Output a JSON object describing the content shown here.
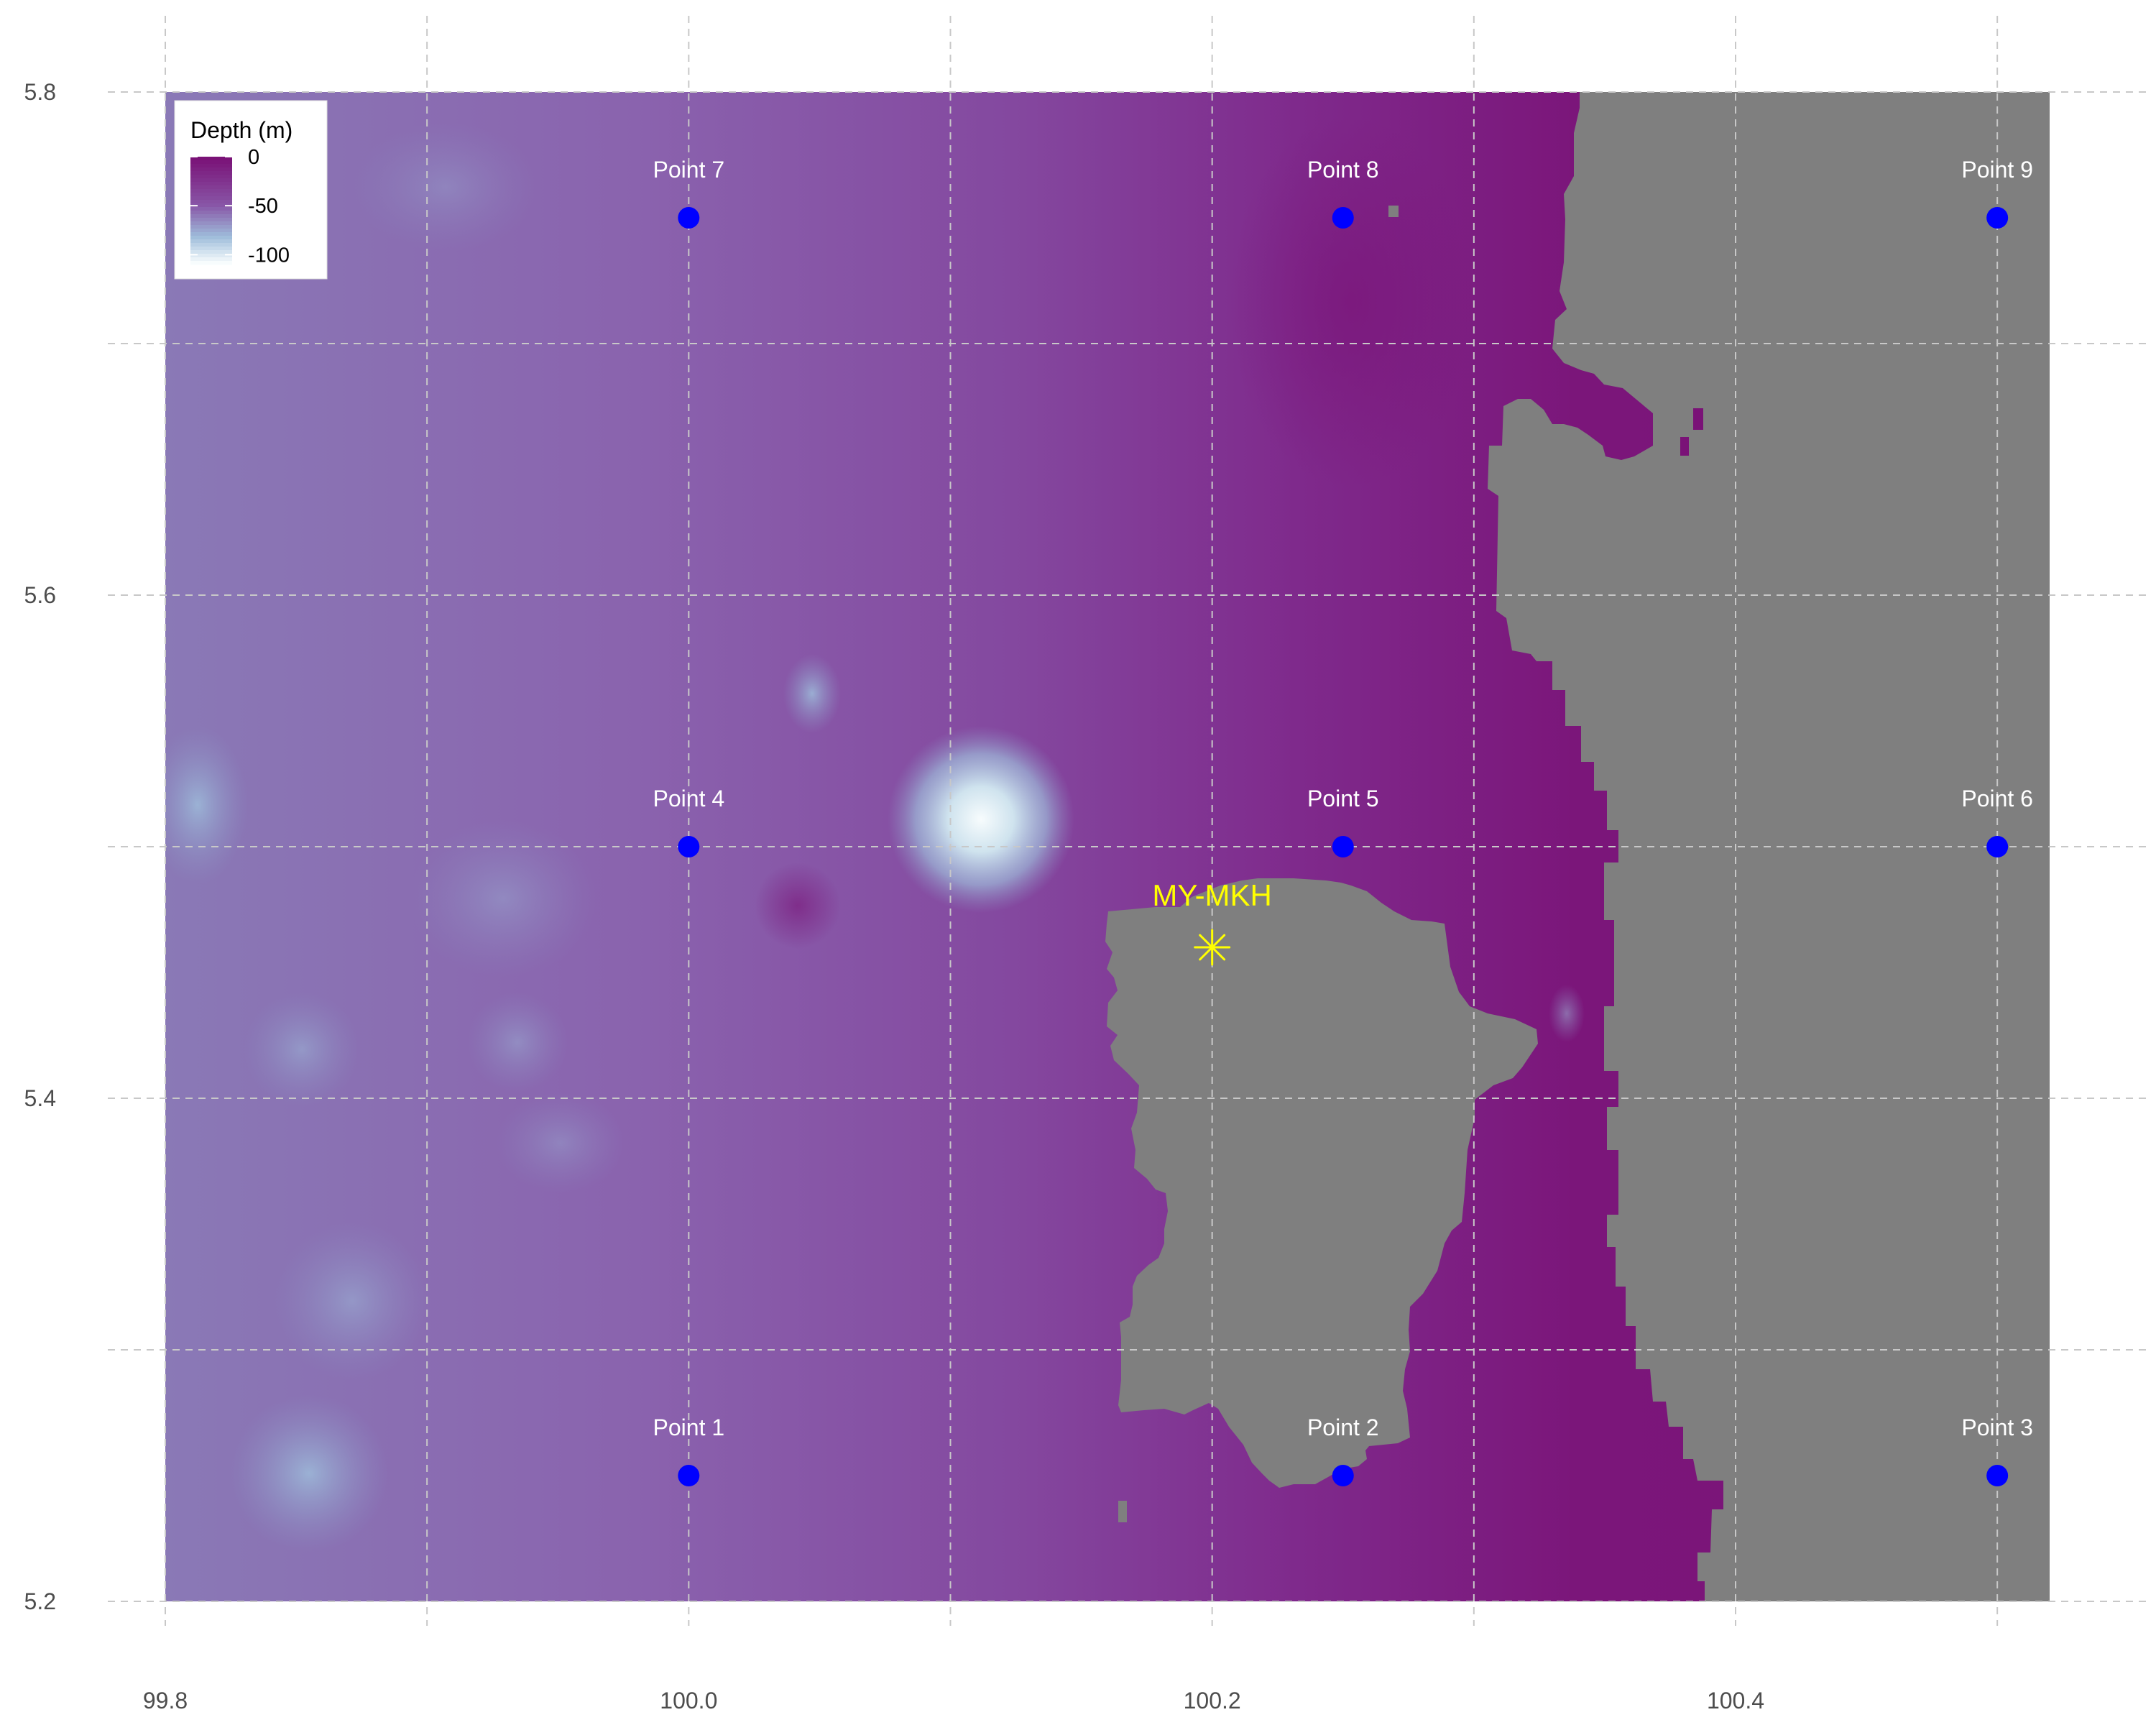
{
  "map": {
    "x_axis": {
      "range": [
        99.8,
        100.55
      ],
      "ticks": [
        99.8,
        100.0,
        100.2,
        100.4
      ],
      "tick_labels": [
        "99.8",
        "100.0",
        "100.2",
        "100.4"
      ]
    },
    "y_axis": {
      "range": [
        5.2,
        5.8
      ],
      "ticks": [
        5.2,
        5.4,
        5.6,
        5.8
      ],
      "tick_labels": [
        "5.2",
        "5.4",
        "5.6",
        "5.8"
      ]
    },
    "grid": true,
    "land_color": "#7f7f7f",
    "water_shallow_color": "#7a177a",
    "water_mid_color": "#8c6bb1",
    "water_deep_color": "#f7fcfd",
    "legend": {
      "title": "Depth (m)",
      "placement": "top-left",
      "labels": [
        "0",
        "-50",
        "-100"
      ],
      "values": [
        0,
        -50,
        -100
      ]
    },
    "points": [
      {
        "label": "Point 1",
        "lon": 100.0,
        "lat": 5.25
      },
      {
        "label": "Point 2",
        "lon": 100.25,
        "lat": 5.25
      },
      {
        "label": "Point 3",
        "lon": 100.5,
        "lat": 5.25
      },
      {
        "label": "Point 4",
        "lon": 100.0,
        "lat": 5.5
      },
      {
        "label": "Point 5",
        "lon": 100.25,
        "lat": 5.5
      },
      {
        "label": "Point 6",
        "lon": 100.5,
        "lat": 5.5
      },
      {
        "label": "Point 7",
        "lon": 100.0,
        "lat": 5.75
      },
      {
        "label": "Point 8",
        "lon": 100.25,
        "lat": 5.75
      },
      {
        "label": "Point 9",
        "lon": 100.5,
        "lat": 5.75
      }
    ],
    "point_color": "#0000ff",
    "site": {
      "label": "MY-MKH",
      "lon": 100.2,
      "lat": 5.46,
      "color": "#ffff00"
    }
  }
}
